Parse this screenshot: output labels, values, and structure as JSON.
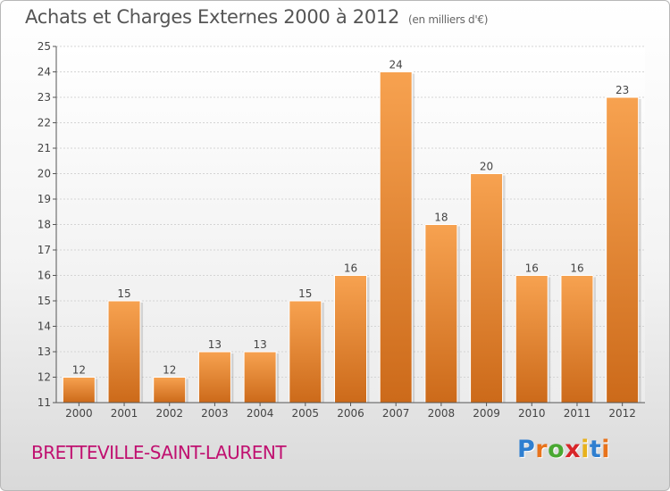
{
  "title": "Achats et Charges Externes 2000 à 2012",
  "unit": "(en milliers d'€)",
  "commune": "BRETTEVILLE-SAINT-LAURENT",
  "logo": {
    "letters": [
      "P",
      "r",
      "o",
      "x",
      "i",
      "t",
      "i"
    ],
    "colors": [
      "#2f7fd0",
      "#e8731c",
      "#49a832",
      "#d8262a",
      "#e8b21c",
      "#2f7fd0",
      "#e8731c"
    ]
  },
  "chart_data": {
    "type": "bar",
    "title": "Achats et Charges Externes 2000 à 2012",
    "subtitle": "(en milliers d'€)",
    "categories": [
      "2000",
      "2001",
      "2002",
      "2003",
      "2004",
      "2005",
      "2006",
      "2007",
      "2008",
      "2009",
      "2010",
      "2011",
      "2012"
    ],
    "values": [
      12,
      15,
      12,
      13,
      13,
      15,
      16,
      24,
      18,
      20,
      16,
      16,
      23
    ],
    "value_labels": [
      "12",
      "15",
      "12",
      "13",
      "13",
      "15",
      "16",
      "24",
      "18",
      "20",
      "16",
      "16",
      "23"
    ],
    "ylim": [
      11,
      25
    ],
    "yticks": [
      "11",
      "12",
      "13",
      "14",
      "15",
      "16",
      "17",
      "18",
      "19",
      "20",
      "21",
      "22",
      "23",
      "24",
      "25"
    ],
    "grid": true,
    "bar_color_top": "#f7a250",
    "bar_color_bottom": "#cc6a1a",
    "xlabel": "",
    "ylabel": ""
  }
}
